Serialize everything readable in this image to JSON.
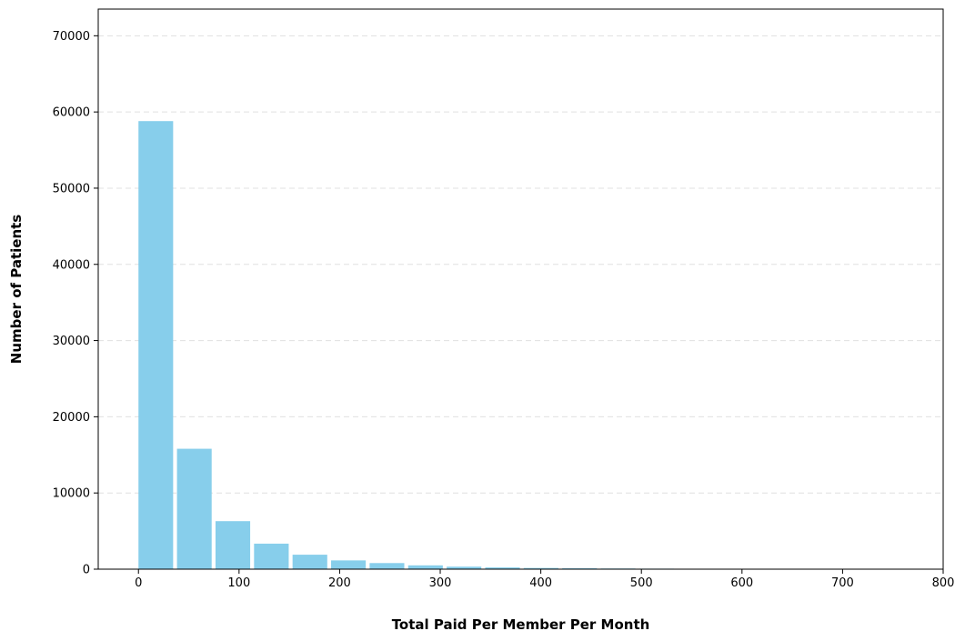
{
  "chart_data": {
    "type": "bar",
    "title": "",
    "xlabel": "Total Paid Per Member Per Month",
    "ylabel": "Number of Patients",
    "bin_width": 38.3,
    "bins": [
      {
        "x": 0,
        "value": 58800
      },
      {
        "x": 38.3,
        "value": 15800
      },
      {
        "x": 76.6,
        "value": 6300
      },
      {
        "x": 114.9,
        "value": 3350
      },
      {
        "x": 153.2,
        "value": 1900
      },
      {
        "x": 191.5,
        "value": 1150
      },
      {
        "x": 229.8,
        "value": 800
      },
      {
        "x": 268.1,
        "value": 500
      },
      {
        "x": 306.4,
        "value": 330
      },
      {
        "x": 344.7,
        "value": 230
      },
      {
        "x": 383.0,
        "value": 160
      },
      {
        "x": 421.3,
        "value": 120
      },
      {
        "x": 459.6,
        "value": 90
      },
      {
        "x": 497.9,
        "value": 70
      },
      {
        "x": 536.2,
        "value": 55
      },
      {
        "x": 574.5,
        "value": 45
      },
      {
        "x": 612.8,
        "value": 35
      },
      {
        "x": 651.1,
        "value": 30
      },
      {
        "x": 689.4,
        "value": 25
      },
      {
        "x": 727.7,
        "value": 20
      }
    ],
    "xlim": [
      -40,
      800
    ],
    "ylim": [
      0,
      73500
    ],
    "xticks": [
      0,
      100,
      200,
      300,
      400,
      500,
      600,
      700,
      800
    ],
    "yticks": [
      0,
      10000,
      20000,
      30000,
      40000,
      50000,
      60000,
      70000
    ],
    "grid": "horizontal-dashed",
    "legend": "none",
    "colors": {
      "bar": "#87ceeb",
      "grid": "#e0e0e0",
      "axis": "#000000"
    }
  }
}
